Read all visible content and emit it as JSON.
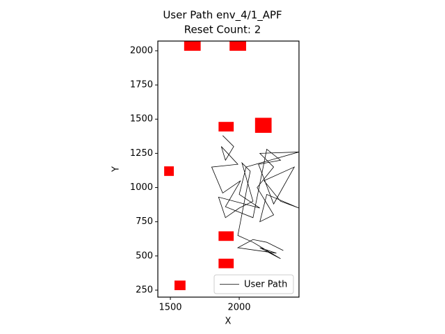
{
  "chart_data": {
    "type": "path",
    "title": "User Path env_4/1_APF",
    "subtitle": "Reset Count: 2",
    "xlabel": "X",
    "ylabel": "Y",
    "xlim": [
      1409,
      2434
    ],
    "ylim": [
      199,
      2071
    ],
    "xticks": [
      1500,
      2000
    ],
    "yticks": [
      250,
      500,
      750,
      1000,
      1250,
      1500,
      1750,
      2000
    ],
    "obstacle_color": "#ff0000",
    "obstacles": [
      {
        "x": [
          1600,
          1720
        ],
        "y": [
          2000,
          2080
        ]
      },
      {
        "x": [
          1930,
          2050
        ],
        "y": [
          2000,
          2080
        ]
      },
      {
        "x": [
          1850,
          1960
        ],
        "y": [
          1410,
          1480
        ]
      },
      {
        "x": [
          2115,
          2235
        ],
        "y": [
          1400,
          1510
        ]
      },
      {
        "x": [
          1455,
          1525
        ],
        "y": [
          1085,
          1155
        ]
      },
      {
        "x": [
          1850,
          1960
        ],
        "y": [
          610,
          680
        ]
      },
      {
        "x": [
          1850,
          1960
        ],
        "y": [
          410,
          480
        ]
      },
      {
        "x": [
          1530,
          1610
        ],
        "y": [
          250,
          320
        ]
      }
    ],
    "series": [
      {
        "name": "User Path",
        "color": "#000000",
        "x": [
          1880,
          1960,
          1900,
          1870,
          1990,
          1800,
          1880,
          2010,
          1900,
          2100,
          2200,
          2300,
          2140,
          2250,
          2400,
          2180,
          2300,
          2434,
          2200,
          2150,
          2250,
          2130,
          2250,
          2150,
          2434,
          2050,
          2000,
          2150,
          1850,
          1900,
          2000,
          2100,
          2020,
          2080,
          1990,
          2100,
          2300,
          2150,
          2270,
          1990,
          2100,
          2200,
          2320
        ],
        "values": [
          1380,
          1300,
          1200,
          1300,
          1170,
          1150,
          960,
          1050,
          860,
          780,
          1280,
          1200,
          1170,
          880,
          1150,
          1050,
          900,
          850,
          950,
          750,
          800,
          1000,
          1150,
          1250,
          1260,
          1150,
          950,
          850,
          930,
          780,
          850,
          900,
          1180,
          1120,
          650,
          600,
          480,
          560,
          520,
          560,
          620,
          600,
          540
        ]
      }
    ],
    "legend": "lower right"
  }
}
